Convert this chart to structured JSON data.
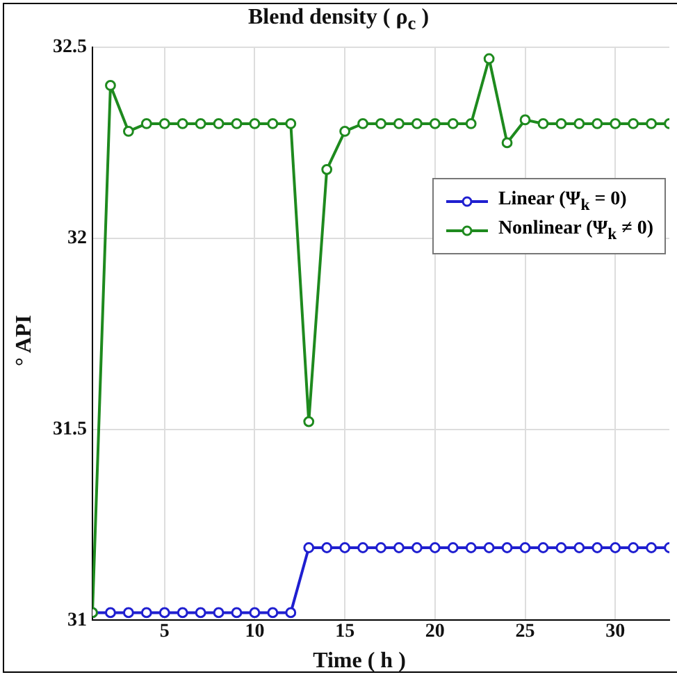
{
  "chart_data": {
    "type": "line",
    "title": "Blend density ( ρ$_{c}$ )",
    "xlabel": "Time ( h )",
    "ylabel": "° API",
    "x": [
      1,
      2,
      3,
      4,
      5,
      6,
      7,
      8,
      9,
      10,
      11,
      12,
      13,
      14,
      15,
      16,
      17,
      18,
      19,
      20,
      21,
      22,
      23,
      24,
      25,
      26,
      27,
      28,
      29,
      30,
      31,
      32,
      33
    ],
    "series": [
      {
        "name": "Linear (Ψ$_{k}$ = 0)",
        "color": "#1f1fd0",
        "values": [
          31.02,
          31.02,
          31.02,
          31.02,
          31.02,
          31.02,
          31.02,
          31.02,
          31.02,
          31.02,
          31.02,
          31.02,
          31.19,
          31.19,
          31.19,
          31.19,
          31.19,
          31.19,
          31.19,
          31.19,
          31.19,
          31.19,
          31.19,
          31.19,
          31.19,
          31.19,
          31.19,
          31.19,
          31.19,
          31.19,
          31.19,
          31.19,
          31.19
        ]
      },
      {
        "name": "Nonlinear (Ψ$_{k}$ ≠ 0)",
        "color": "#1e8a1e",
        "values": [
          31.02,
          32.4,
          32.28,
          32.3,
          32.3,
          32.3,
          32.3,
          32.3,
          32.3,
          32.3,
          32.3,
          32.3,
          31.52,
          32.18,
          32.28,
          32.3,
          32.3,
          32.3,
          32.3,
          32.3,
          32.3,
          32.3,
          32.47,
          32.25,
          32.31,
          32.3,
          32.3,
          32.3,
          32.3,
          32.3,
          32.3,
          32.3,
          32.3
        ]
      }
    ],
    "xlim": [
      1,
      33
    ],
    "xticks": [
      5,
      10,
      15,
      20,
      25,
      30
    ],
    "ylim": [
      31,
      32.5
    ],
    "yticks": [
      31,
      31.5,
      32,
      32.5
    ],
    "grid": true,
    "legend": "right",
    "marker": "circle",
    "line_style": "solid"
  }
}
